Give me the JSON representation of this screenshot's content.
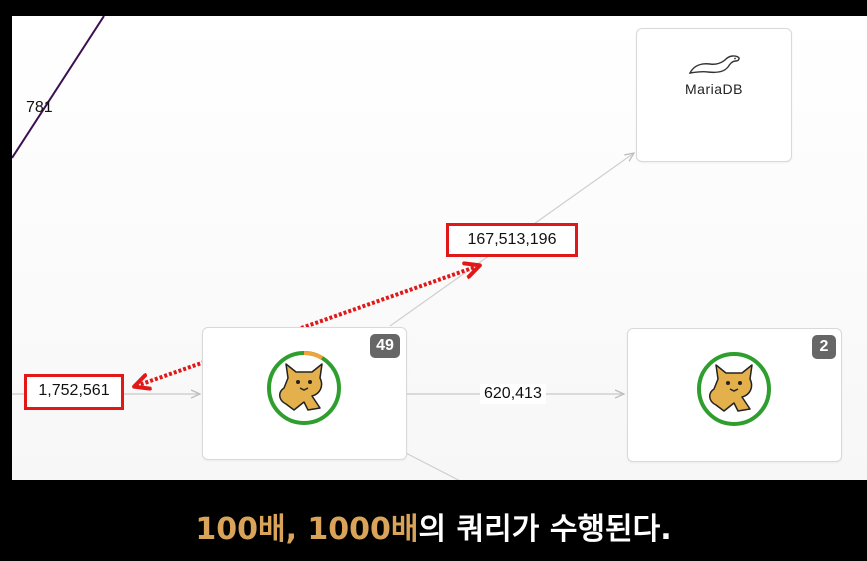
{
  "topology": {
    "edge_label_top_left": "781",
    "edge_label_incoming": "1,752,561",
    "edge_label_db": "167,513,196",
    "edge_label_between_nodes": "620,413",
    "db_node": {
      "logo_text": "MariaDB",
      "icon": "mariadb-seal-icon"
    },
    "app_node_1": {
      "instance_count": "49",
      "icon": "tomcat-icon",
      "status_ring_color": "#2e9e2e",
      "status_ring_accent": "#f2a23a"
    },
    "app_node_2": {
      "instance_count": "2",
      "icon": "tomcat-icon",
      "status_ring_color": "#2e9e2e"
    }
  },
  "annotation": {
    "highlight_color": "#e01818",
    "arrow": "double-headed-red-arrow"
  },
  "subtitle": {
    "highlight_part": "100배, 1000배",
    "rest_part": "의 쿼리가 수행된다.",
    "highlight_color": "#d9a45a",
    "text_color": "#ffffff"
  }
}
